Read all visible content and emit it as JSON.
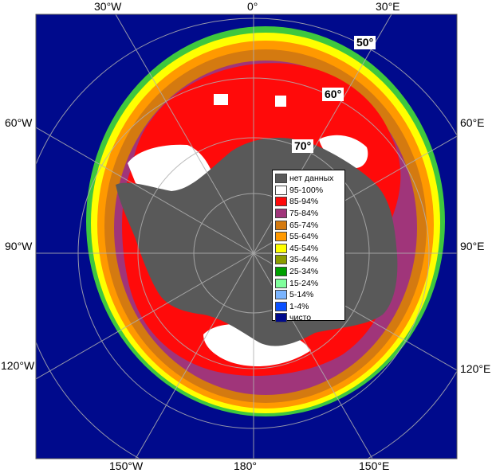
{
  "map": {
    "colors": {
      "ocean": "#000a8c",
      "land": "#595959",
      "frame": "#595959",
      "graticule": "#b0b0b0",
      "ice_edge_1": "#3ec83e",
      "ice_edge_2": "#ffff00",
      "ice_edge_3": "#ff9900",
      "ice_edge_4": "#d47a10",
      "ice_mid": "#a0357a",
      "ice_high": "#ff0a0a",
      "ice_full": "#ffffff"
    },
    "longitude_labels": {
      "top_30w": "30°W",
      "top_0": "0°",
      "top_30e": "30°E",
      "left_60w": "60°W",
      "right_60e": "60°E",
      "left_90w": "90°W",
      "right_90e": "90°E",
      "left_120w": "120°W",
      "right_120e": "120°E",
      "bottom_150w": "150°W",
      "bottom_180": "180°",
      "bottom_150e": "150°E"
    },
    "latitude_labels": {
      "lat50": "50°",
      "lat60": "60°",
      "lat70": "70°"
    }
  },
  "legend": {
    "items": [
      {
        "label": "нет данных",
        "color": "#595959"
      },
      {
        "label": "95-100%",
        "color": "#ffffff"
      },
      {
        "label": "85-94%",
        "color": "#ff0a0a"
      },
      {
        "label": "75-84%",
        "color": "#a0357a"
      },
      {
        "label": "65-74%",
        "color": "#d47a10"
      },
      {
        "label": "55-64%",
        "color": "#ff9900"
      },
      {
        "label": "45-54%",
        "color": "#ffff00"
      },
      {
        "label": "35-44%",
        "color": "#8c9c00"
      },
      {
        "label": "25-34%",
        "color": "#00a000"
      },
      {
        "label": "15-24%",
        "color": "#80ff9c"
      },
      {
        "label": "5-14%",
        "color": "#7ab4ff"
      },
      {
        "label": "1-4%",
        "color": "#0a50ff"
      },
      {
        "label": "чисто",
        "color": "#000a8c"
      }
    ]
  }
}
